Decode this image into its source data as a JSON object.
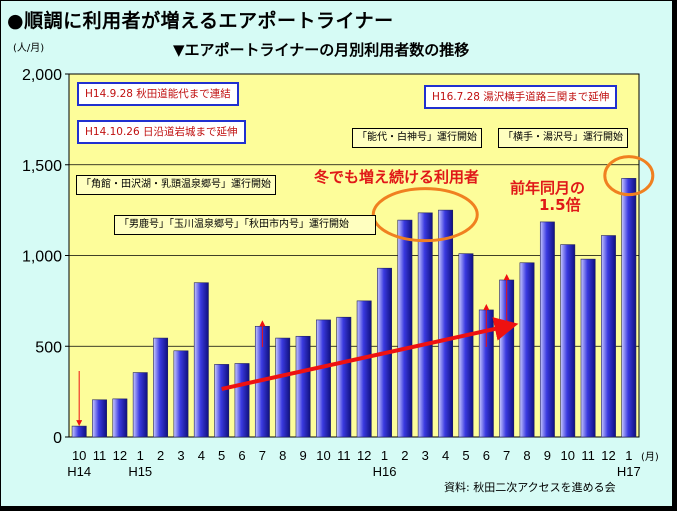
{
  "main_title": "●順調に利用者が増えるエアポートライナー",
  "chart_title": "▼エアポートライナーの月別利用者数の推移",
  "y_unit": "(人/月)",
  "x_unit": "(月)",
  "source": "資料: 秋田二次アクセスを進める会",
  "colors": {
    "bar_top": "#c8c8ff",
    "bar_mid": "#3a3ae0",
    "bar_dark": "#101080",
    "plot_bg": "#fdfd9a",
    "arrow": "#ee1111",
    "oval": "#f08020"
  },
  "annotations": {
    "noshiro": "H14.9.28 秋田道能代まで連結",
    "iwaki": "H14.10.26 日沿道岩城まで延伸",
    "yuzawa": "H16.7.28 湯沢横手道路三関まで延伸",
    "kakunodate": "「角館・田沢湖・乳頭温泉郷号」運行開始",
    "oga": "「男鹿号」「玉川温泉郷号」「秋田市内号」運行開始",
    "noshiro_shirakami": "「能代・白神号」運行開始",
    "yokote": "「横手・湯沢号」運行開始"
  },
  "callouts": {
    "winter": "冬でも増え続ける利用者",
    "yoy": "前年同月の",
    "yoy_value": "1.5倍"
  },
  "chart_data": {
    "type": "bar",
    "categories": [
      "10",
      "11",
      "12",
      "1",
      "2",
      "3",
      "4",
      "5",
      "6",
      "7",
      "8",
      "9",
      "10",
      "11",
      "12",
      "1",
      "2",
      "3",
      "4",
      "5",
      "6",
      "7",
      "8",
      "9",
      "10",
      "11",
      "12",
      "1"
    ],
    "year_labels": [
      {
        "index": 0,
        "label": "H14"
      },
      {
        "index": 3,
        "label": "H15"
      },
      {
        "index": 15,
        "label": "H16"
      },
      {
        "index": 27,
        "label": "H17"
      }
    ],
    "values": [
      60,
      205,
      210,
      355,
      545,
      475,
      850,
      400,
      405,
      610,
      545,
      555,
      645,
      660,
      750,
      930,
      1195,
      1235,
      1250,
      1010,
      700,
      865,
      960,
      1185,
      1060,
      980,
      1110,
      1425
    ],
    "ylim": [
      0,
      2000
    ],
    "yticks": [
      0,
      500,
      1000,
      1500,
      2000
    ],
    "ytick_labels": [
      "0",
      "500",
      "1,000",
      "1,500",
      "2,000"
    ],
    "grid": true,
    "title": "エアポートライナーの月別利用者数の推移",
    "ylabel": "(人/月)",
    "xlabel": "(月)"
  }
}
